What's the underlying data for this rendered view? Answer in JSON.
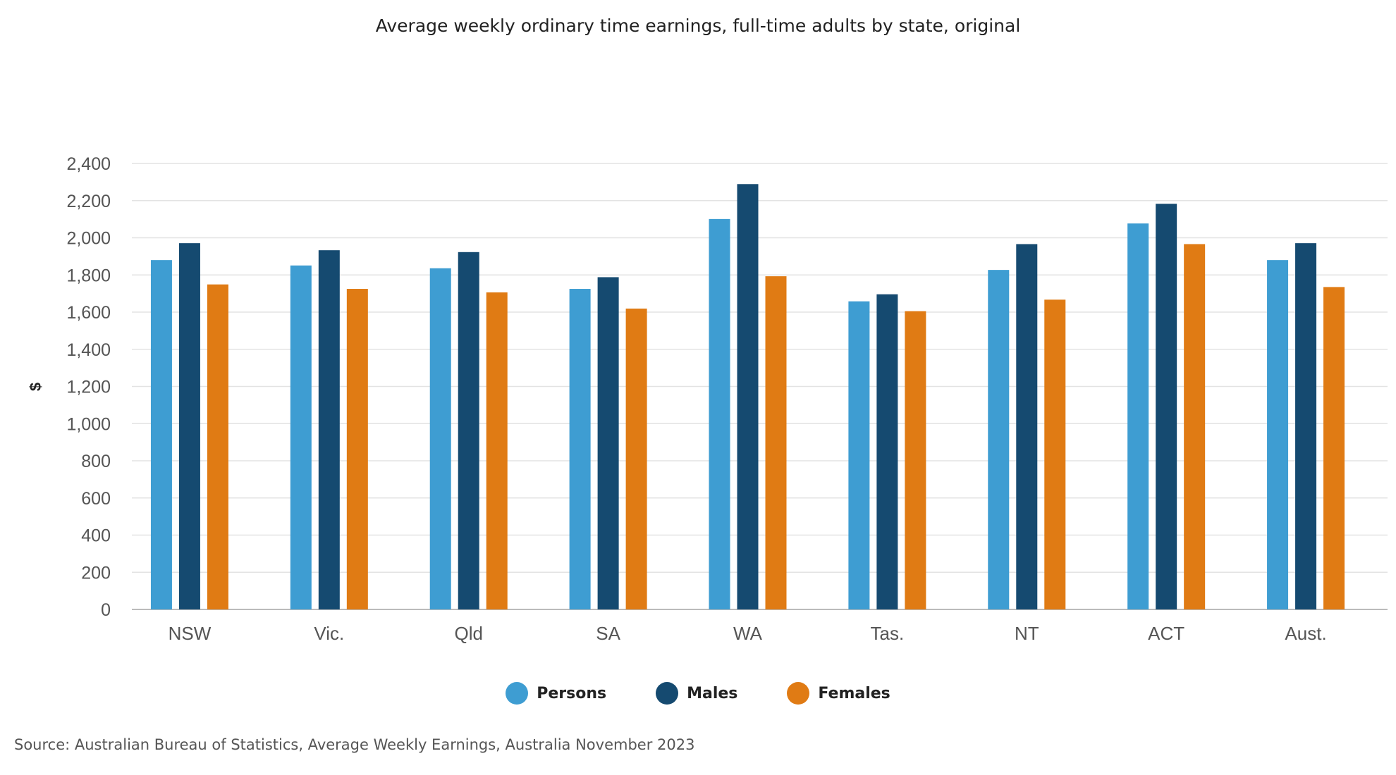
{
  "chart_data": {
    "type": "bar",
    "title": "Average weekly ordinary time earnings, full-time adults by state, original",
    "ylabel": "$",
    "xlabel": "",
    "ylim": [
      0,
      2400
    ],
    "yticks": [
      "0",
      "200",
      "400",
      "600",
      "800",
      "1,000",
      "1,200",
      "1,400",
      "1,600",
      "1,800",
      "2,000",
      "2,200",
      "2,400"
    ],
    "grid": true,
    "legend_position": "bottom",
    "categories": [
      "NSW",
      "Vic.",
      "Qld",
      "SA",
      "WA",
      "Tas.",
      "NT",
      "ACT",
      "Aust."
    ],
    "series": [
      {
        "name": "Persons",
        "color": "#3e9dd2",
        "values": [
          1880,
          1851,
          1836,
          1725,
          2101,
          1658,
          1827,
          2077,
          1880
        ]
      },
      {
        "name": "Males",
        "color": "#154a70",
        "values": [
          1971,
          1933,
          1923,
          1788,
          2289,
          1696,
          1966,
          2183,
          1971
        ]
      },
      {
        "name": "Females",
        "color": "#e07b14",
        "values": [
          1749,
          1725,
          1706,
          1619,
          1793,
          1605,
          1667,
          1966,
          1735
        ]
      }
    ],
    "source": "Source: Australian Bureau of Statistics, Average Weekly Earnings, Australia November 2023"
  }
}
